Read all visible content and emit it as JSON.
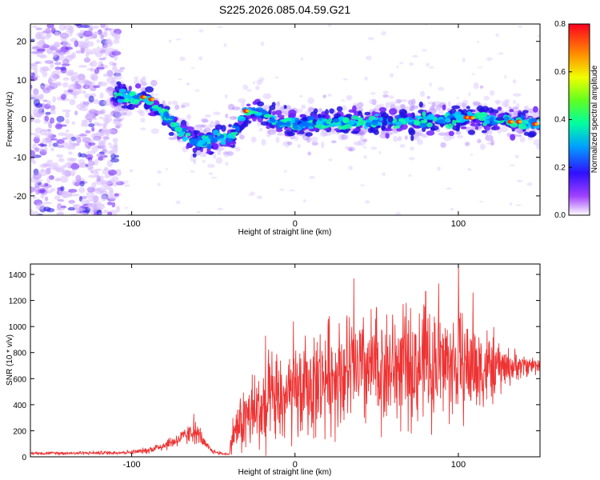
{
  "title": "S225.2026.085.04.59.G21",
  "chart_data": [
    {
      "type": "heatmap",
      "title": "S225.2026.085.04.59.G21",
      "xlabel": "Height of straight line (km)",
      "ylabel": "Frequency (Hz)",
      "xlim": [
        -162,
        150
      ],
      "ylim": [
        -25,
        24.5
      ],
      "xticks": [
        -100,
        0,
        100
      ],
      "xtick_labels": [
        "-100",
        "0",
        "100"
      ],
      "yticks": [
        20,
        10,
        0,
        -10,
        -20
      ],
      "ytick_labels": [
        "20",
        "10",
        "0",
        "-10",
        "-20"
      ],
      "colorbar": {
        "label": "Normalized spectral amplitude",
        "range": [
          0.0,
          0.8
        ],
        "ticks": [
          0.0,
          0.2,
          0.4,
          0.6,
          0.8
        ],
        "tick_labels": [
          "0.0",
          "0.2",
          "0.4",
          "0.6",
          "0.8"
        ]
      },
      "ridge": {
        "x": [
          -110,
          -100,
          -92,
          -85,
          -78,
          -70,
          -62,
          -55,
          -48,
          -42,
          -37,
          -30,
          -20,
          -10,
          0,
          20,
          40,
          60,
          80,
          100,
          120,
          140,
          150
        ],
        "frequency": [
          6,
          5.5,
          5.5,
          3,
          0,
          -3,
          -6,
          -6,
          -5,
          -6,
          -3,
          2,
          1.5,
          -1,
          -1.5,
          -1,
          -1,
          -0.5,
          -0.5,
          0,
          0,
          -1,
          -1.5
        ]
      }
    },
    {
      "type": "line",
      "xlabel": "Height of straight line (km)",
      "ylabel": "SNR (10 * v/v)",
      "xlim": [
        -162,
        150
      ],
      "ylim": [
        0,
        1480
      ],
      "xticks": [
        -100,
        0,
        100
      ],
      "xtick_labels": [
        "-100",
        "0",
        "100"
      ],
      "yticks": [
        0,
        200,
        400,
        600,
        800,
        1000,
        1200,
        1400
      ],
      "ytick_labels": [
        "0",
        "200",
        "400",
        "600",
        "800",
        "1000",
        "1200",
        "1400"
      ],
      "color": "#ee3333",
      "envelope": {
        "x": [
          -162,
          -140,
          -120,
          -100,
          -90,
          -80,
          -70,
          -62,
          -58,
          -55,
          -50,
          -45,
          -40,
          -39,
          -35,
          -30,
          -20,
          -10,
          0,
          10,
          20,
          30,
          40,
          50,
          60,
          70,
          80,
          90,
          100,
          110,
          120,
          130,
          140,
          150
        ],
        "mean": [
          28,
          28,
          30,
          35,
          50,
          90,
          140,
          190,
          160,
          90,
          40,
          25,
          20,
          150,
          230,
          300,
          380,
          430,
          470,
          540,
          620,
          650,
          660,
          670,
          680,
          690,
          700,
          720,
          700,
          690,
          680,
          690,
          700,
          710
        ],
        "spread": [
          12,
          12,
          14,
          16,
          25,
          45,
          60,
          90,
          70,
          40,
          18,
          10,
          8,
          120,
          200,
          300,
          360,
          380,
          390,
          400,
          420,
          440,
          460,
          460,
          460,
          460,
          450,
          450,
          420,
          380,
          300,
          150,
          90,
          70
        ]
      },
      "peaks": [
        {
          "x": 100,
          "y": 1475
        },
        {
          "x": 36,
          "y": 1370
        },
        {
          "x": 88,
          "y": 1330
        },
        {
          "x": 80,
          "y": 1270
        },
        {
          "x": 109,
          "y": 1260
        },
        {
          "x": 50,
          "y": 1150
        },
        {
          "x": 21,
          "y": 1080
        },
        {
          "x": -18,
          "y": 930
        },
        {
          "x": -1,
          "y": 1040
        },
        {
          "x": -62,
          "y": 330
        }
      ]
    }
  ]
}
